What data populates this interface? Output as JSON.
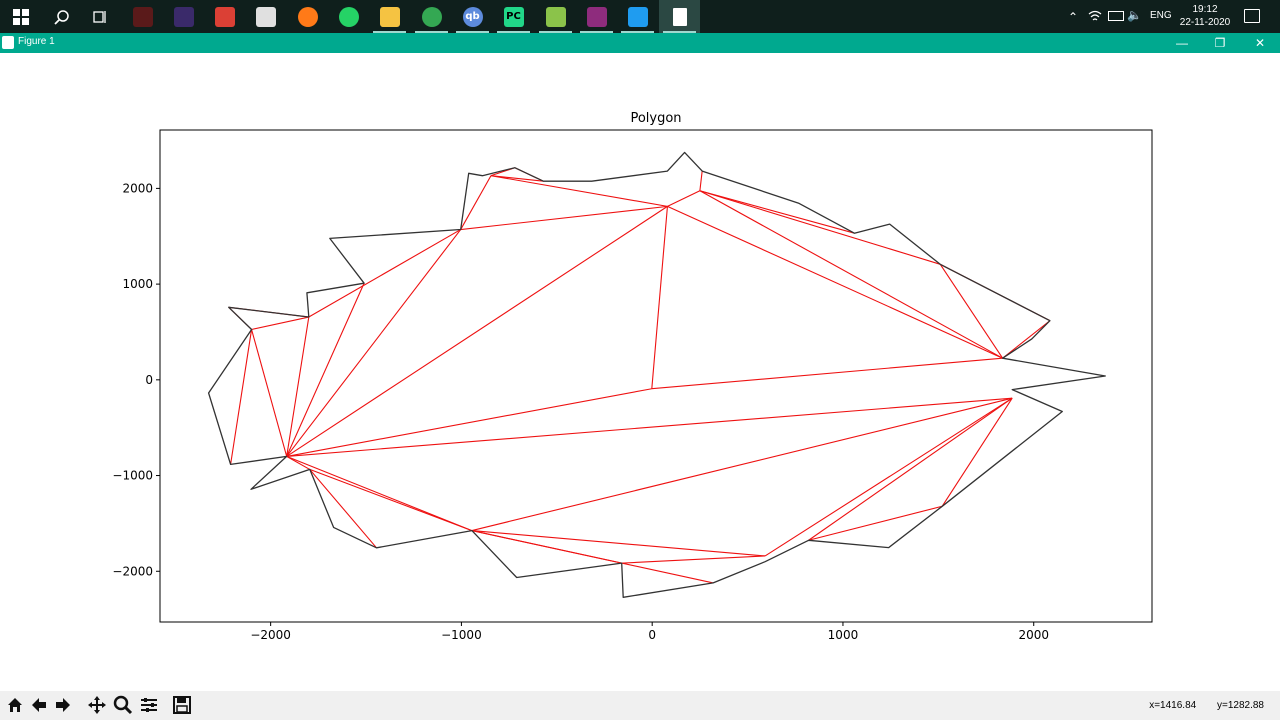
{
  "taskbar": {
    "apps": [
      {
        "name": "windows-start-icon",
        "color": "#ffffff"
      },
      {
        "name": "search-icon",
        "color": "#ffffff"
      },
      {
        "name": "task-view-icon",
        "color": "#ffffff"
      },
      {
        "name": "armoury-crate-icon",
        "color": "#5a1a1a"
      },
      {
        "name": "torrent-client-icon",
        "color": "#3a2a6a"
      },
      {
        "name": "todoist-icon",
        "color": "#db4035"
      },
      {
        "name": "photos-icon",
        "color": "#e0e0e0"
      },
      {
        "name": "firefox-icon",
        "color": "#ff7a18"
      },
      {
        "name": "whatsapp-icon",
        "color": "#25d366"
      },
      {
        "name": "file-explorer-icon",
        "color": "#f5c342"
      },
      {
        "name": "chrome-icon",
        "color": "#34a853"
      },
      {
        "name": "qbittorrent-icon",
        "color": "#5d8bdc",
        "label": "qb"
      },
      {
        "name": "pycharm-icon",
        "color": "#21d789",
        "label": "PC"
      },
      {
        "name": "notepad-plus-icon",
        "color": "#8bc34a"
      },
      {
        "name": "winrar-icon",
        "color": "#8e2c7d"
      },
      {
        "name": "vscode-icon",
        "color": "#1f9cf0"
      },
      {
        "name": "matplotlib-window-icon",
        "color": "#ffffff"
      }
    ],
    "language": "ENG",
    "time": "19:12",
    "date": "22-11-2020"
  },
  "window": {
    "title": "Figure 1"
  },
  "coords": {
    "x": "x=1416.84",
    "y": "y=1282.88"
  },
  "chart_data": {
    "type": "line",
    "title": "Polygon",
    "xlabel": "",
    "ylabel": "",
    "xlim": [
      -2580,
      2620
    ],
    "ylim": [
      -2530,
      2610
    ],
    "xticks": [
      -2000,
      -1000,
      0,
      1000,
      2000
    ],
    "yticks": [
      -2000,
      -1000,
      0,
      1000,
      2000
    ],
    "xtick_labels": [
      "−2000",
      "−1000",
      "0",
      "1000",
      "2000"
    ],
    "ytick_labels": [
      "−2000",
      "−1000",
      "0",
      "1000",
      "2000"
    ],
    "grid": false,
    "colors": {
      "polygon": "#333333",
      "triangulation": "#ee1111"
    },
    "series": [
      {
        "color": "#333333",
        "points": [
          [
            -2325,
            -138
          ],
          [
            -2210,
            -884
          ],
          [
            -1916,
            -800
          ],
          [
            -2103,
            -1144
          ],
          [
            -1795,
            -936
          ],
          [
            -1670,
            -1542
          ],
          [
            -1445,
            -1755
          ],
          [
            -945,
            -1575
          ],
          [
            -710,
            -2065
          ],
          [
            -160,
            -1915
          ],
          [
            -152,
            -2272
          ],
          [
            320,
            -2122
          ],
          [
            592,
            -1900
          ],
          [
            820,
            -1676
          ],
          [
            1240,
            -1753
          ],
          [
            1520,
            -1321
          ],
          [
            2150,
            -331
          ],
          [
            1887,
            -102
          ],
          [
            2375,
            40
          ],
          [
            1837,
            226
          ],
          [
            1990,
            428
          ],
          [
            2085,
            618
          ],
          [
            1510,
            1207
          ],
          [
            1245,
            1627
          ],
          [
            1060,
            1532
          ],
          [
            770,
            1843
          ],
          [
            262,
            2181
          ],
          [
            170,
            2376
          ],
          [
            80,
            2181
          ],
          [
            -317,
            2075
          ],
          [
            -570,
            2075
          ],
          [
            -720,
            2216
          ],
          [
            -890,
            2133
          ],
          [
            -962,
            2158
          ],
          [
            -1004,
            1570
          ],
          [
            -1690,
            1478
          ],
          [
            -1510,
            1010
          ],
          [
            -1810,
            909
          ],
          [
            -1800,
            656
          ],
          [
            -2220,
            758
          ],
          [
            -2100,
            526
          ]
        ],
        "closed": true
      },
      {
        "color": "#ee1111",
        "segments": [
          [
            [
              -2100,
              526
            ],
            [
              -2210,
              -884
            ]
          ],
          [
            [
              -2100,
              526
            ],
            [
              -2220,
              758
            ]
          ],
          [
            [
              -2100,
              526
            ],
            [
              -1916,
              -800
            ]
          ],
          [
            [
              -2100,
              526
            ],
            [
              -1800,
              656
            ]
          ],
          [
            [
              -2220,
              758
            ],
            [
              -1800,
              656
            ]
          ],
          [
            [
              -1800,
              656
            ],
            [
              -1916,
              -800
            ]
          ],
          [
            [
              -1800,
              656
            ],
            [
              -1004,
              1570
            ]
          ],
          [
            [
              -1916,
              -800
            ],
            [
              -1510,
              1010
            ]
          ],
          [
            [
              -1916,
              -800
            ],
            [
              -1004,
              1570
            ]
          ],
          [
            [
              -1916,
              -800
            ],
            [
              80,
              1812
            ]
          ],
          [
            [
              -1004,
              1570
            ],
            [
              80,
              1812
            ]
          ],
          [
            [
              -1004,
              1570
            ],
            [
              -845,
              2133
            ]
          ],
          [
            [
              -845,
              2133
            ],
            [
              80,
              1812
            ]
          ],
          [
            [
              -845,
              2133
            ],
            [
              -720,
              2216
            ]
          ],
          [
            [
              -720,
              2216
            ],
            [
              -570,
              2075
            ]
          ],
          [
            [
              -845,
              2133
            ],
            [
              -570,
              2075
            ]
          ],
          [
            [
              80,
              1812
            ],
            [
              -2,
              -93
            ]
          ],
          [
            [
              80,
              1812
            ],
            [
              250,
              1975
            ]
          ],
          [
            [
              250,
              1975
            ],
            [
              262,
              2181
            ]
          ],
          [
            [
              250,
              1975
            ],
            [
              1060,
              1532
            ]
          ],
          [
            [
              250,
              1975
            ],
            [
              1510,
              1207
            ]
          ],
          [
            [
              80,
              1812
            ],
            [
              1837,
              226
            ]
          ],
          [
            [
              250,
              1975
            ],
            [
              1837,
              226
            ]
          ],
          [
            [
              1510,
              1207
            ],
            [
              2085,
              618
            ]
          ],
          [
            [
              1510,
              1207
            ],
            [
              1837,
              226
            ]
          ],
          [
            [
              1837,
              226
            ],
            [
              2085,
              618
            ]
          ],
          [
            [
              -1916,
              -800
            ],
            [
              -2,
              -93
            ]
          ],
          [
            [
              -2,
              -93
            ],
            [
              1837,
              226
            ]
          ],
          [
            [
              -1916,
              -800
            ],
            [
              1887,
              -192
            ]
          ],
          [
            [
              -1916,
              -800
            ],
            [
              -1795,
              -936
            ]
          ],
          [
            [
              -1916,
              -800
            ],
            [
              -945,
              -1575
            ]
          ],
          [
            [
              -1795,
              -936
            ],
            [
              -1445,
              -1755
            ]
          ],
          [
            [
              -1795,
              -936
            ],
            [
              -945,
              -1575
            ]
          ],
          [
            [
              -945,
              -1575
            ],
            [
              1887,
              -192
            ]
          ],
          [
            [
              -945,
              -1575
            ],
            [
              592,
              -1840
            ]
          ],
          [
            [
              -945,
              -1575
            ],
            [
              320,
              -2122
            ]
          ],
          [
            [
              -160,
              -1915
            ],
            [
              592,
              -1840
            ]
          ],
          [
            [
              -945,
              -1575
            ],
            [
              -160,
              -1915
            ]
          ],
          [
            [
              592,
              -1840
            ],
            [
              1887,
              -192
            ]
          ],
          [
            [
              820,
              -1676
            ],
            [
              1887,
              -192
            ]
          ],
          [
            [
              820,
              -1676
            ],
            [
              1520,
              -1321
            ]
          ],
          [
            [
              1520,
              -1321
            ],
            [
              1887,
              -192
            ]
          ]
        ]
      }
    ]
  }
}
